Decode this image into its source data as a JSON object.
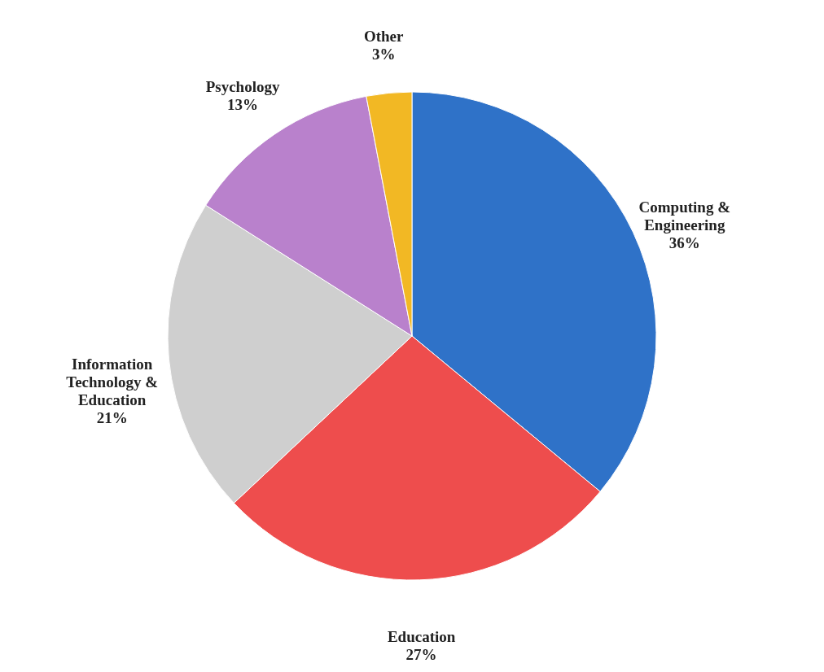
{
  "chart_data": {
    "type": "pie",
    "categories": [
      "Computing & Engineering",
      "Education",
      "Information Technology & Education",
      "Psychology",
      "Other"
    ],
    "values": [
      36,
      27,
      21,
      13,
      3
    ],
    "colors": [
      "#2f72c8",
      "#ee4d4d",
      "#cfcfcf",
      "#b981cc",
      "#f2b824"
    ],
    "value_labels": [
      "36%",
      "27%",
      "21%",
      "13%",
      "3%"
    ]
  }
}
